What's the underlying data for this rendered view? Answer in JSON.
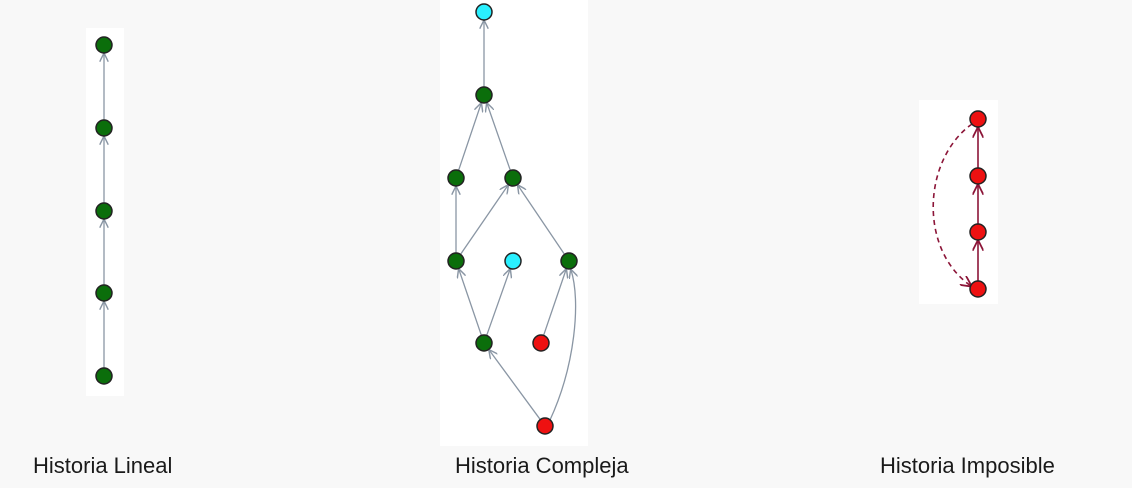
{
  "captions": {
    "lineal": "Historia Lineal",
    "compleja": "Historia Compleja",
    "imposible": "Historia Imposible"
  },
  "colors": {
    "node_green": "#0b6e0b",
    "node_cyan": "#2af0ff",
    "node_red": "#ee1111",
    "node_stroke": "#222222",
    "edge_gray": "#8a96a4",
    "edge_dark_red": "#8c1538",
    "background": "#f8f8f8",
    "panel": "#ffffff"
  },
  "graphs": {
    "lineal": {
      "nodes": [
        {
          "id": "l1",
          "color": "green"
        },
        {
          "id": "l2",
          "color": "green"
        },
        {
          "id": "l3",
          "color": "green"
        },
        {
          "id": "l4",
          "color": "green"
        },
        {
          "id": "l5",
          "color": "green"
        }
      ],
      "edges": [
        {
          "from": "l5",
          "to": "l4",
          "style": "solid"
        },
        {
          "from": "l4",
          "to": "l3",
          "style": "solid"
        },
        {
          "from": "l3",
          "to": "l2",
          "style": "solid"
        },
        {
          "from": "l2",
          "to": "l1",
          "style": "solid"
        }
      ]
    },
    "compleja": {
      "nodes": [
        {
          "id": "c_top",
          "color": "cyan"
        },
        {
          "id": "c_merge",
          "color": "green"
        },
        {
          "id": "c_l2a",
          "color": "green"
        },
        {
          "id": "c_l2b",
          "color": "green"
        },
        {
          "id": "c_l3a",
          "color": "green"
        },
        {
          "id": "c_l3b",
          "color": "cyan"
        },
        {
          "id": "c_l3c",
          "color": "green"
        },
        {
          "id": "c_l4a",
          "color": "green"
        },
        {
          "id": "c_l4b",
          "color": "red"
        },
        {
          "id": "c_bot",
          "color": "red"
        }
      ],
      "edges": [
        {
          "from": "c_merge",
          "to": "c_top",
          "style": "solid"
        },
        {
          "from": "c_l2a",
          "to": "c_merge",
          "style": "solid"
        },
        {
          "from": "c_l2b",
          "to": "c_merge",
          "style": "solid"
        },
        {
          "from": "c_l3a",
          "to": "c_l2a",
          "style": "solid"
        },
        {
          "from": "c_l3a",
          "to": "c_l2b",
          "style": "solid"
        },
        {
          "from": "c_l3c",
          "to": "c_l2b",
          "style": "solid"
        },
        {
          "from": "c_l4a",
          "to": "c_l3a",
          "style": "solid"
        },
        {
          "from": "c_l4a",
          "to": "c_l3b",
          "style": "solid"
        },
        {
          "from": "c_l4b",
          "to": "c_l3c",
          "style": "solid"
        },
        {
          "from": "c_bot",
          "to": "c_l4a",
          "style": "solid"
        },
        {
          "from": "c_bot",
          "to": "c_l3c",
          "style": "curved"
        }
      ]
    },
    "imposible": {
      "nodes": [
        {
          "id": "i1",
          "color": "red"
        },
        {
          "id": "i2",
          "color": "red"
        },
        {
          "id": "i3",
          "color": "red"
        },
        {
          "id": "i4",
          "color": "red"
        }
      ],
      "edges": [
        {
          "from": "i4",
          "to": "i3",
          "style": "solid"
        },
        {
          "from": "i3",
          "to": "i2",
          "style": "solid"
        },
        {
          "from": "i2",
          "to": "i1",
          "style": "solid"
        },
        {
          "from": "i1",
          "to": "i4",
          "style": "dashed-curve"
        }
      ]
    }
  }
}
